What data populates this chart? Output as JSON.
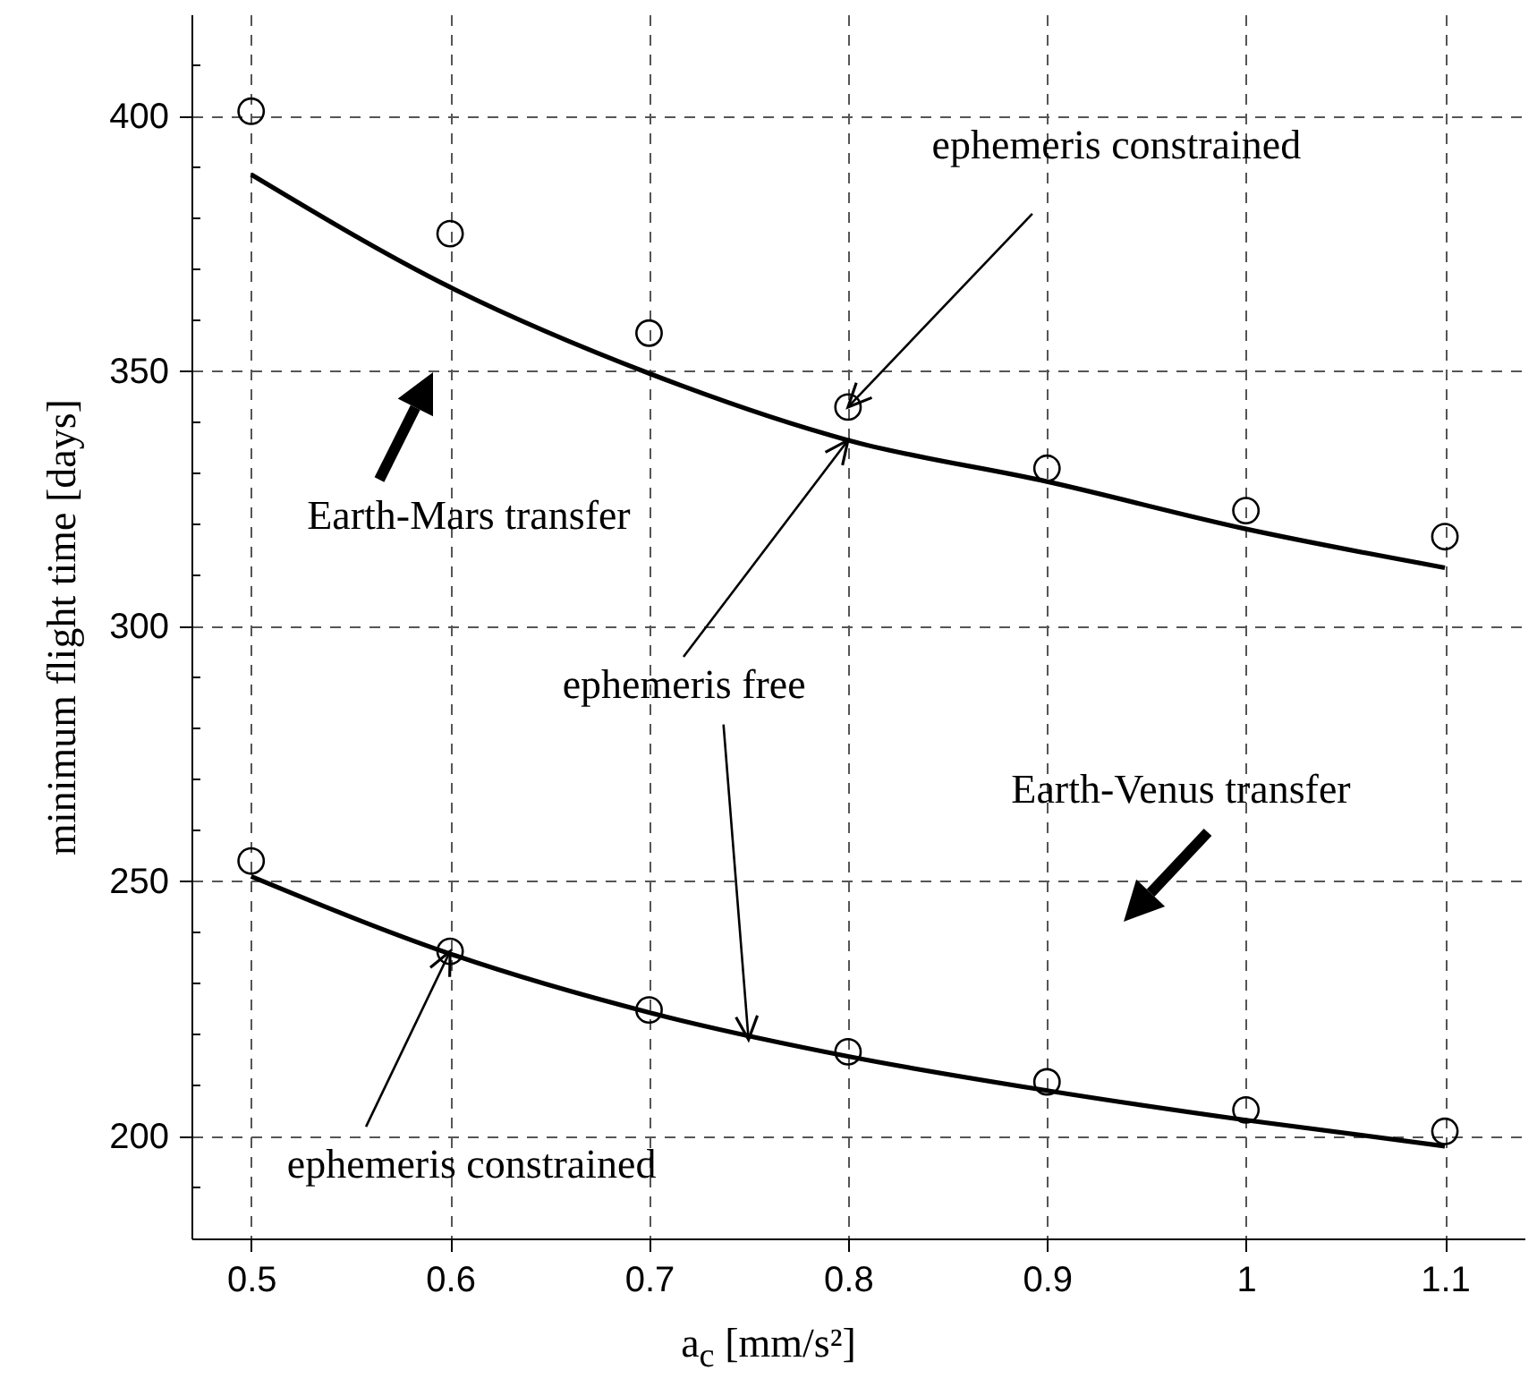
{
  "chart_data": {
    "type": "scatter",
    "xlabel": "a$_{c}$ [mm/s²]",
    "ylabel": "minimum flight time [days]",
    "xlim": [
      0.47,
      1.14
    ],
    "xticks": [
      0.5,
      0.6,
      0.7,
      0.8,
      0.9,
      1,
      1.1
    ],
    "ylim": [
      180,
      420
    ],
    "yticks": [
      200,
      250,
      300,
      350,
      400,
      {
        "value": 190,
        "label": null
      },
      {
        "value": 210,
        "label": null
      },
      {
        "value": 220,
        "label": null
      },
      {
        "value": 230,
        "label": null
      },
      {
        "value": 240,
        "label": null
      },
      {
        "value": 260,
        "label": null
      },
      {
        "value": 270,
        "label": null
      },
      {
        "value": 280,
        "label": null
      },
      {
        "value": 290,
        "label": null
      },
      {
        "value": 310,
        "label": null
      },
      {
        "value": 320,
        "label": null
      },
      {
        "value": 330,
        "label": null
      },
      {
        "value": 340,
        "label": null
      },
      {
        "value": 360,
        "label": null
      },
      {
        "value": 370,
        "label": null
      },
      {
        "value": 380,
        "label": null
      },
      {
        "value": 390,
        "label": null
      },
      {
        "value": 410,
        "label": null
      }
    ],
    "grid": true,
    "series": [
      {
        "marker": "circle",
        "color": "#000000",
        "x": [
          0.5,
          0.6,
          0.7,
          0.8,
          0.9,
          1.0,
          1.1
        ],
        "values": [
          401,
          377,
          357.5,
          343,
          331,
          322.7,
          317.6
        ]
      },
      {
        "type": "line",
        "line_style": "solid",
        "color": "#000000",
        "x": [
          0.5,
          0.6,
          0.7,
          0.8,
          0.9,
          1.0,
          1.1
        ],
        "values": [
          388.6,
          366.5,
          349.6,
          336.5,
          328.4,
          319.1,
          311.5
        ]
      },
      {
        "marker": "circle",
        "color": "#000000",
        "x": [
          0.5,
          0.6,
          0.7,
          0.8,
          0.9,
          1.0,
          1.1
        ],
        "values": [
          254,
          236.3,
          224.8,
          216.6,
          210.7,
          205.2,
          201
        ]
      },
      {
        "type": "line",
        "line_style": "solid",
        "color": "#000000",
        "x": [
          0.5,
          0.6,
          0.7,
          0.8,
          0.9,
          1.0,
          1.1
        ],
        "values": [
          251,
          235.8,
          224.3,
          215.7,
          209,
          203.2,
          198.1
        ]
      }
    ],
    "annotations": [
      {
        "text": "ephemeris constrained",
        "x": 0.8,
        "y": 343
      },
      "Earth-Mars transfer",
      {
        "text": "ephemeris free",
        "x": 0.75,
        "y": 219
      },
      "Earth-Venus transfer",
      {
        "text": "ephemeris constrained",
        "x": 0.6,
        "y": 236.3
      }
    ]
  }
}
